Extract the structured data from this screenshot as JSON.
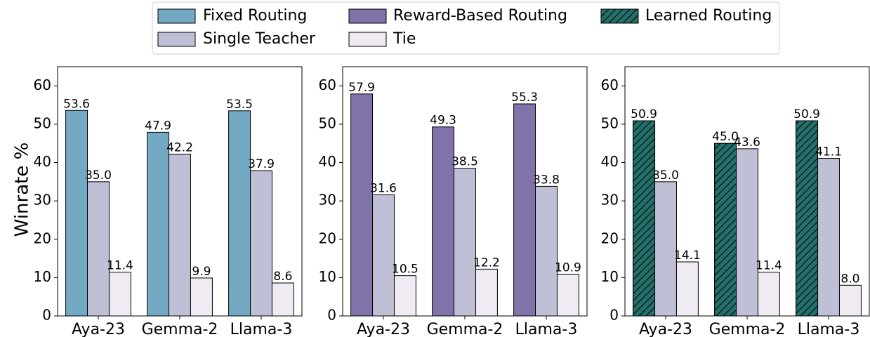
{
  "chart_data": [
    {
      "type": "bar",
      "ylabel": "Winrate %",
      "categories": [
        "Aya-23",
        "Gemma-2",
        "Llama-3"
      ],
      "ylim": [
        0,
        65
      ],
      "yticks": [
        0,
        10,
        20,
        30,
        40,
        50,
        60
      ],
      "series": [
        {
          "name": "Fixed Routing",
          "color": "#74a9c4",
          "values": [
            53.6,
            47.9,
            53.5
          ],
          "value_labels": [
            "53.6",
            "47.9",
            "53.5"
          ]
        },
        {
          "name": "Single Teacher",
          "color": "#bfbfd6",
          "values": [
            35.0,
            42.2,
            37.9
          ],
          "value_labels": [
            "35.0",
            "42.2",
            "37.9"
          ]
        },
        {
          "name": "Tie",
          "color": "#f0eaf2",
          "values": [
            11.4,
            9.9,
            8.6
          ],
          "value_labels": [
            "11.4",
            "9.9",
            "8.6"
          ]
        }
      ]
    },
    {
      "type": "bar",
      "categories": [
        "Aya-23",
        "Gemma-2",
        "Llama-3"
      ],
      "ylim": [
        0,
        65
      ],
      "yticks": [
        0,
        10,
        20,
        30,
        40,
        50,
        60
      ],
      "series": [
        {
          "name": "Reward-Based Routing",
          "color": "#8172aa",
          "values": [
            57.9,
            49.3,
            55.3
          ],
          "value_labels": [
            "57.9",
            "49.3",
            "55.3"
          ]
        },
        {
          "name": "Single Teacher",
          "color": "#bfbfd6",
          "values": [
            31.6,
            38.5,
            33.8
          ],
          "value_labels": [
            "31.6",
            "38.5",
            "33.8"
          ]
        },
        {
          "name": "Tie",
          "color": "#f0eaf2",
          "values": [
            10.5,
            12.2,
            10.9
          ],
          "value_labels": [
            "10.5",
            "12.2",
            "10.9"
          ]
        }
      ]
    },
    {
      "type": "bar",
      "categories": [
        "Aya-23",
        "Gemma-2",
        "Llama-3"
      ],
      "ylim": [
        0,
        65
      ],
      "yticks": [
        0,
        10,
        20,
        30,
        40,
        50,
        60
      ],
      "series": [
        {
          "name": "Learned Routing",
          "color": "#23706a",
          "hatch": "//",
          "values": [
            50.9,
            45.0,
            50.9
          ],
          "value_labels": [
            "50.9",
            "45.0",
            "50.9"
          ]
        },
        {
          "name": "Single Teacher",
          "color": "#bfbfd6",
          "values": [
            35.0,
            43.6,
            41.1
          ],
          "value_labels": [
            "35.0",
            "43.6",
            "41.1"
          ]
        },
        {
          "name": "Tie",
          "color": "#f0eaf2",
          "values": [
            14.1,
            11.4,
            8.0
          ],
          "value_labels": [
            "14.1",
            "11.4",
            "8.0"
          ]
        }
      ]
    }
  ]
}
